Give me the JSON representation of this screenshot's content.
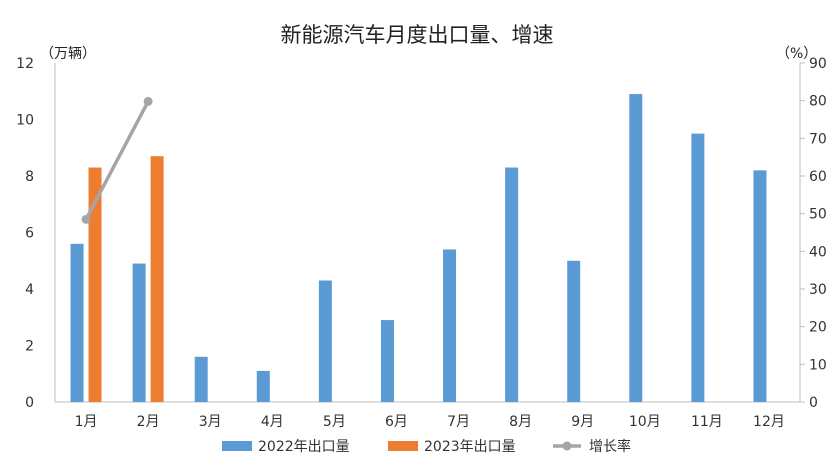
{
  "chart_data": {
    "type": "bar",
    "title": "新能源汽车月度出口量、增速",
    "y_left_unit": "（万辆）",
    "y_right_unit": "（%）",
    "categories": [
      "1月",
      "2月",
      "3月",
      "4月",
      "5月",
      "6月",
      "7月",
      "8月",
      "9月",
      "10月",
      "11月",
      "12月"
    ],
    "y_left_ticks": [
      "0",
      "2",
      "4",
      "6",
      "8",
      "10",
      "12"
    ],
    "y_right_ticks": [
      "0",
      "10",
      "20",
      "30",
      "40",
      "50",
      "60",
      "70",
      "80",
      "90"
    ],
    "ylim_left": [
      0,
      12
    ],
    "ylim_right": [
      0,
      90
    ],
    "grid": false,
    "legend_position": "bottom",
    "series": [
      {
        "name": "2022年出口量",
        "type": "bar",
        "axis": "left",
        "color": "#5B9BD5",
        "values": [
          5.6,
          4.9,
          1.6,
          1.1,
          4.3,
          2.9,
          5.4,
          8.3,
          5.0,
          10.9,
          9.5,
          8.2
        ]
      },
      {
        "name": "2023年出口量",
        "type": "bar",
        "axis": "left",
        "color": "#ED7D31",
        "values": [
          8.3,
          8.7,
          null,
          null,
          null,
          null,
          null,
          null,
          null,
          null,
          null,
          null
        ]
      },
      {
        "name": "增长率",
        "type": "line",
        "axis": "right",
        "color": "#A5A5A5",
        "values": [
          48.5,
          79.8,
          null,
          null,
          null,
          null,
          null,
          null,
          null,
          null,
          null,
          null
        ]
      }
    ]
  }
}
